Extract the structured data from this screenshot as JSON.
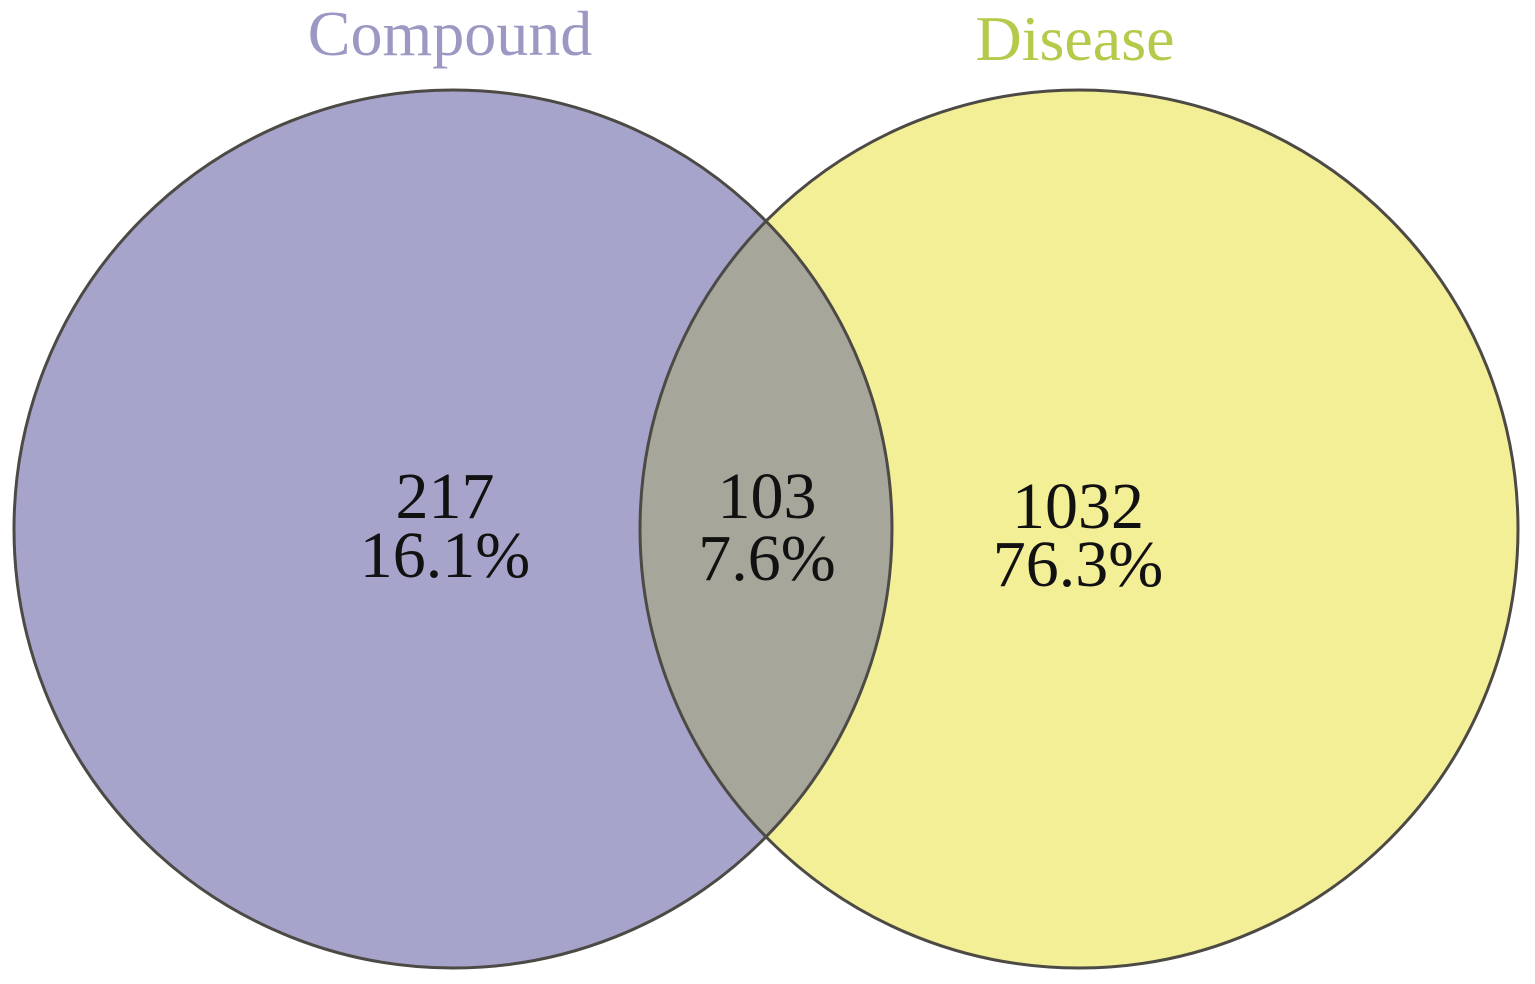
{
  "sets": [
    {
      "name": "Compound",
      "color": "#a7a4cb",
      "title_color": "#9b98c4"
    },
    {
      "name": "Disease",
      "color": "#f3ef96",
      "title_color": "#b5c94a"
    }
  ],
  "overlap_color": "#a7a69b",
  "outline_color": "#4d4a45",
  "regions": {
    "compound_only": {
      "count": "217",
      "percent": "16.1%"
    },
    "both": {
      "count": "103",
      "percent": "7.6%"
    },
    "disease_only": {
      "count": "1032",
      "percent": "76.3%"
    }
  }
}
